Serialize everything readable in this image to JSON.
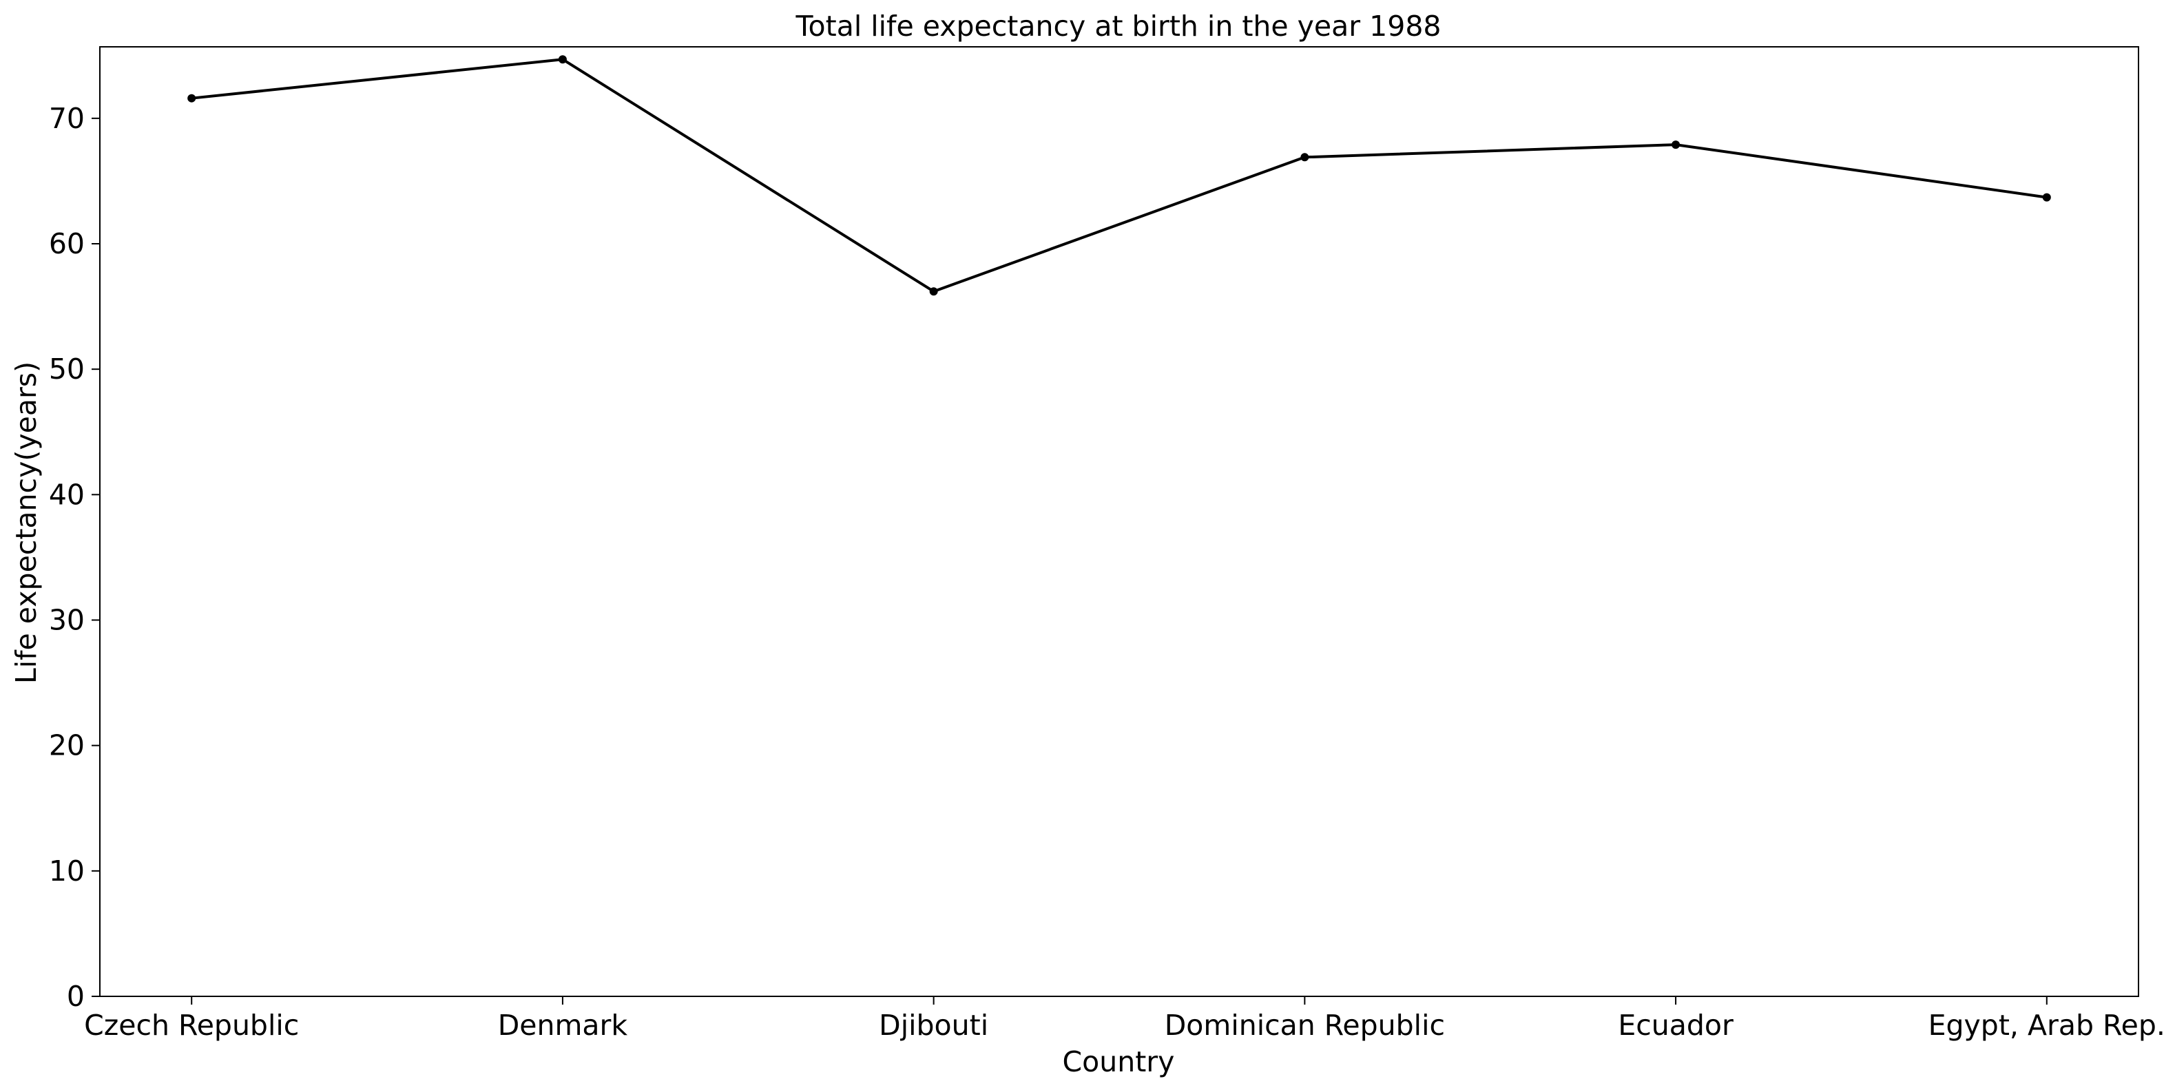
{
  "chart_data": {
    "type": "line",
    "title": "Total life expectancy at birth in the year 1988",
    "xlabel": "Country",
    "ylabel": "Life expectancy(years)",
    "categories": [
      "Czech Republic",
      "Denmark",
      "Djibouti",
      "Dominican Republic",
      "Ecuador",
      "Egypt, Arab Rep."
    ],
    "series": [
      {
        "values": [
          71.6,
          74.7,
          56.2,
          66.9,
          67.9,
          63.7
        ]
      }
    ],
    "ylim": [
      0,
      75.7
    ],
    "yticks": [
      0,
      10,
      20,
      30,
      40,
      50,
      60,
      70
    ],
    "grid": false,
    "legend": "none",
    "colors": {
      "line": "#000000",
      "marker": "#000000",
      "axes": "#000000",
      "background": "#ffffff"
    }
  }
}
